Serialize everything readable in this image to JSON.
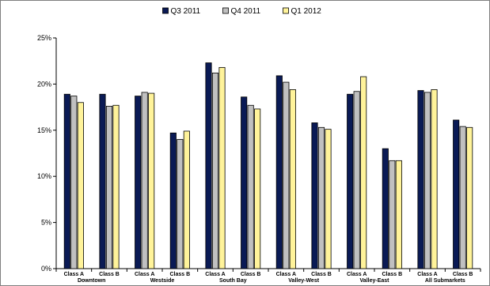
{
  "chart_data": {
    "type": "bar",
    "ylim": [
      0,
      25
    ],
    "y_ticks": [
      0,
      5,
      10,
      15,
      20,
      25
    ],
    "y_tick_format": "percent",
    "legend_position": "top-center",
    "grid": false,
    "categories": [
      "Class A",
      "Class B",
      "Class A",
      "Class B",
      "Class A",
      "Class B",
      "Class A",
      "Class B",
      "Class A",
      "Class B",
      "Class A",
      "Class B"
    ],
    "groups": [
      {
        "label": "Downtown",
        "span": [
          0,
          1
        ]
      },
      {
        "label": "Westside",
        "span": [
          2,
          3
        ]
      },
      {
        "label": "South Bay",
        "span": [
          4,
          5
        ]
      },
      {
        "label": "Valley-West",
        "span": [
          6,
          7
        ]
      },
      {
        "label": "Valley-East",
        "span": [
          8,
          9
        ]
      },
      {
        "label": "All Submarkets",
        "span": [
          10,
          11
        ]
      }
    ],
    "series": [
      {
        "name": "Q3 2011",
        "color": "#0a1a55",
        "values": [
          18.9,
          18.9,
          18.7,
          14.7,
          22.3,
          18.6,
          20.9,
          15.8,
          18.9,
          13.0,
          19.3,
          16.1
        ]
      },
      {
        "name": "Q4 2011",
        "color": "#c0c0c0",
        "values": [
          18.7,
          17.6,
          19.1,
          14.0,
          21.2,
          17.7,
          20.2,
          15.3,
          19.2,
          11.7,
          19.1,
          15.4
        ]
      },
      {
        "name": "Q1 2012",
        "color": "#fff39a",
        "values": [
          18.0,
          17.7,
          19.0,
          14.9,
          21.8,
          17.3,
          19.4,
          15.1,
          20.8,
          11.7,
          19.4,
          15.3
        ]
      }
    ]
  }
}
